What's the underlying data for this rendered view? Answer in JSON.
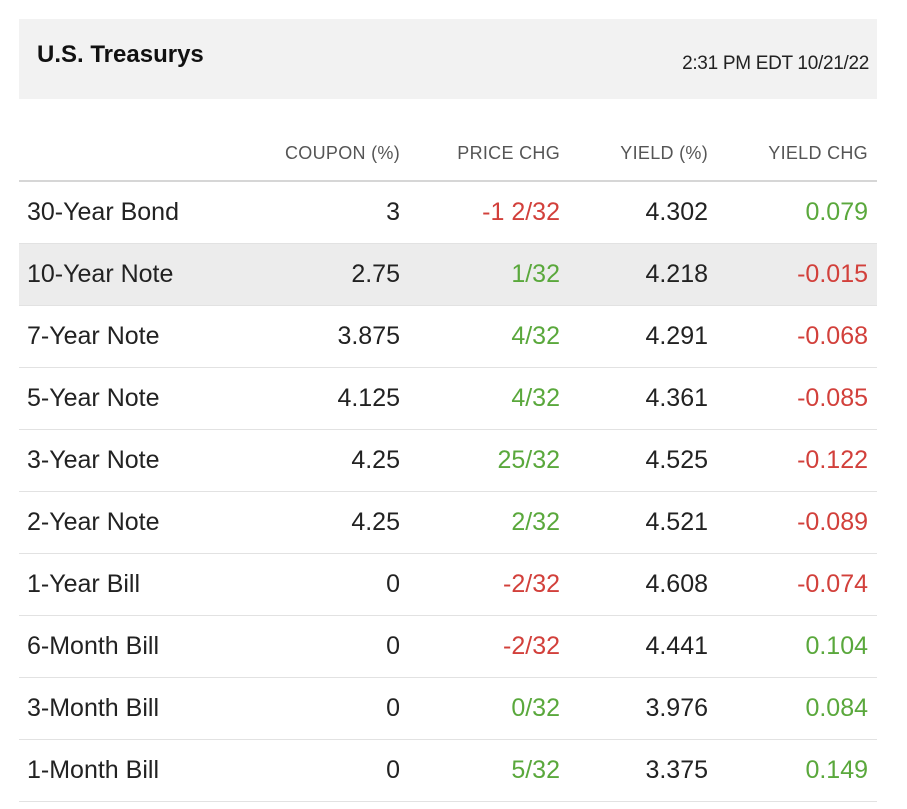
{
  "header": {
    "title": "U.S. Treasurys",
    "timestamp": "2:31 PM EDT 10/21/22"
  },
  "columns": [
    "",
    "COUPON (%)",
    "PRICE CHG",
    "YIELD (%)",
    "YIELD CHG"
  ],
  "rows": [
    {
      "name": "30-Year Bond",
      "coupon": "3",
      "price_chg": "-1 2/32",
      "yield": "4.302",
      "yield_chg": "0.079"
    },
    {
      "name": "10-Year Note",
      "coupon": "2.75",
      "price_chg": "1/32",
      "yield": "4.218",
      "yield_chg": "-0.015"
    },
    {
      "name": "7-Year Note",
      "coupon": "3.875",
      "price_chg": "4/32",
      "yield": "4.291",
      "yield_chg": "-0.068"
    },
    {
      "name": "5-Year Note",
      "coupon": "4.125",
      "price_chg": "4/32",
      "yield": "4.361",
      "yield_chg": "-0.085"
    },
    {
      "name": "3-Year Note",
      "coupon": "4.25",
      "price_chg": "25/32",
      "yield": "4.525",
      "yield_chg": "-0.122"
    },
    {
      "name": "2-Year Note",
      "coupon": "4.25",
      "price_chg": "2/32",
      "yield": "4.521",
      "yield_chg": "-0.089"
    },
    {
      "name": "1-Year Bill",
      "coupon": "0",
      "price_chg": "-2/32",
      "yield": "4.608",
      "yield_chg": "-0.074"
    },
    {
      "name": "6-Month Bill",
      "coupon": "0",
      "price_chg": "-2/32",
      "yield": "4.441",
      "yield_chg": "0.104"
    },
    {
      "name": "3-Month Bill",
      "coupon": "0",
      "price_chg": "0/32",
      "yield": "3.976",
      "yield_chg": "0.084"
    },
    {
      "name": "1-Month Bill",
      "coupon": "0",
      "price_chg": "5/32",
      "yield": "3.375",
      "yield_chg": "0.149"
    }
  ],
  "highlighted_row": "10-Year Note",
  "colors": {
    "positive": "#5aa83c",
    "negative": "#d2403b",
    "header_bg": "#f2f2f2",
    "highlight_bg": "#ececec"
  }
}
